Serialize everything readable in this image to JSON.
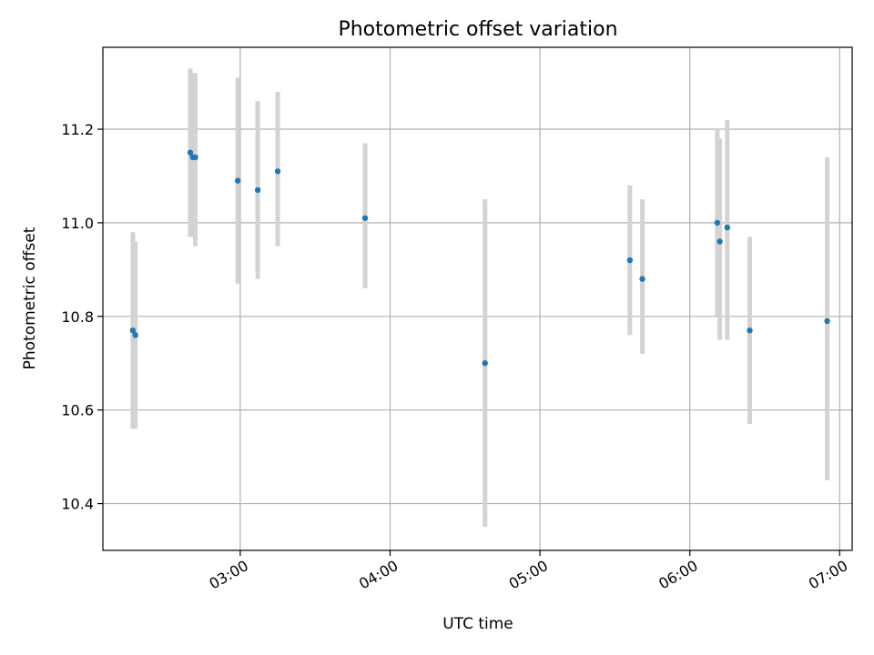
{
  "chart_data": {
    "type": "scatter",
    "title": "Photometric offset variation",
    "xlabel": "UTC time",
    "ylabel": "Photometric offset",
    "xlim": [
      "02:05",
      "07:05"
    ],
    "ylim": [
      10.3,
      11.375
    ],
    "grid": true,
    "x_ticks": [
      "03:00",
      "04:00",
      "05:00",
      "06:00",
      "07:00"
    ],
    "y_ticks": [
      "10.4",
      "10.6",
      "10.8",
      "11.0",
      "11.2"
    ],
    "marker_color": "#1f77b4",
    "errorbar_color": "#d3d3d3",
    "series": [
      {
        "points": [
          {
            "x": "02:17",
            "y": 10.77,
            "ylow": 10.56,
            "yhigh": 10.98
          },
          {
            "x": "02:18",
            "y": 10.76,
            "ylow": 10.56,
            "yhigh": 10.96
          },
          {
            "x": "02:40",
            "y": 11.15,
            "ylow": 10.97,
            "yhigh": 11.33
          },
          {
            "x": "02:41",
            "y": 11.14,
            "ylow": 10.97,
            "yhigh": 11.32
          },
          {
            "x": "02:42",
            "y": 11.14,
            "ylow": 10.95,
            "yhigh": 11.32
          },
          {
            "x": "02:59",
            "y": 11.09,
            "ylow": 10.87,
            "yhigh": 11.31
          },
          {
            "x": "03:07",
            "y": 11.07,
            "ylow": 10.88,
            "yhigh": 11.26
          },
          {
            "x": "03:15",
            "y": 11.11,
            "ylow": 10.95,
            "yhigh": 11.28
          },
          {
            "x": "03:50",
            "y": 11.01,
            "ylow": 10.86,
            "yhigh": 11.17
          },
          {
            "x": "04:38",
            "y": 10.7,
            "ylow": 10.35,
            "yhigh": 11.05
          },
          {
            "x": "05:36",
            "y": 10.92,
            "ylow": 10.76,
            "yhigh": 11.08
          },
          {
            "x": "05:41",
            "y": 10.88,
            "ylow": 10.72,
            "yhigh": 11.05
          },
          {
            "x": "06:11",
            "y": 11.0,
            "ylow": 10.8,
            "yhigh": 11.2
          },
          {
            "x": "06:12",
            "y": 10.96,
            "ylow": 10.75,
            "yhigh": 11.18
          },
          {
            "x": "06:15",
            "y": 10.99,
            "ylow": 10.75,
            "yhigh": 11.22
          },
          {
            "x": "06:24",
            "y": 10.77,
            "ylow": 10.57,
            "yhigh": 10.97
          },
          {
            "x": "06:55",
            "y": 10.79,
            "ylow": 10.45,
            "yhigh": 11.14
          }
        ]
      }
    ]
  }
}
